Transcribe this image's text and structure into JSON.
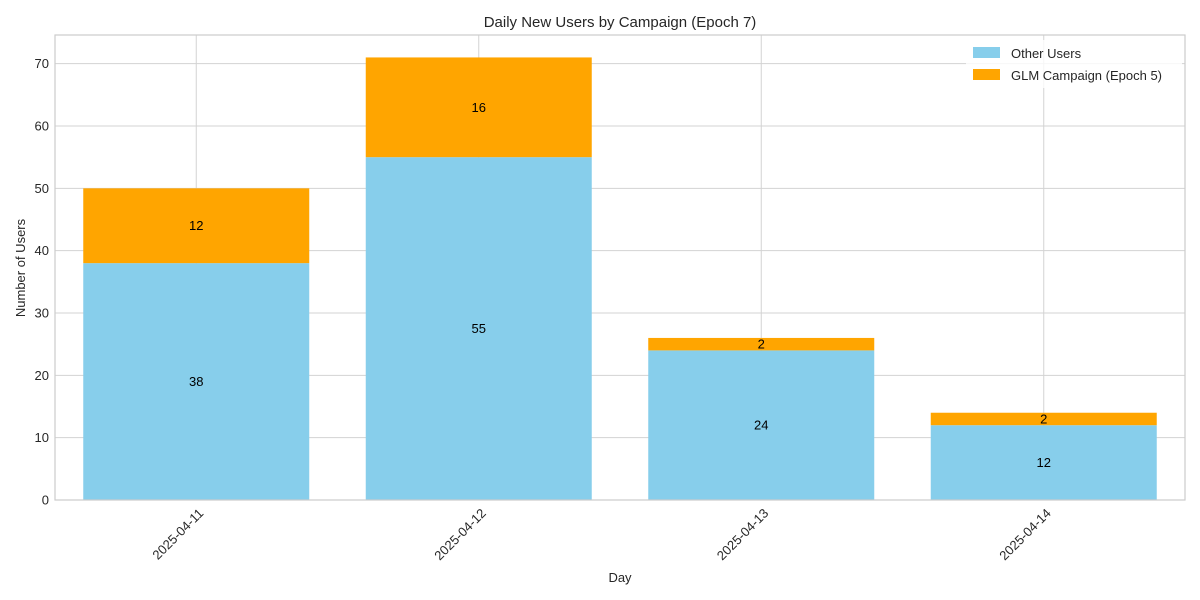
{
  "chart_data": {
    "type": "bar",
    "stacked": true,
    "title": "Daily New Users by Campaign (Epoch 7)",
    "xlabel": "Day",
    "ylabel": "Number of Users",
    "categories": [
      "2025-04-11",
      "2025-04-12",
      "2025-04-13",
      "2025-04-14"
    ],
    "series": [
      {
        "name": "Other Users",
        "values": [
          38,
          55,
          24,
          12
        ],
        "color": "#87ceeb"
      },
      {
        "name": "GLM Campaign (Epoch 5)",
        "values": [
          12,
          16,
          2,
          2
        ],
        "color": "#ffa500"
      }
    ],
    "ylim": [
      0,
      74.6
    ],
    "yticks": [
      0,
      10,
      20,
      30,
      40,
      50,
      60,
      70
    ],
    "grid": true,
    "legend_position": "top-right",
    "colors": {
      "grid": "#d3d3d3",
      "axes_edge": "#cccccc",
      "text": "#262626"
    }
  }
}
